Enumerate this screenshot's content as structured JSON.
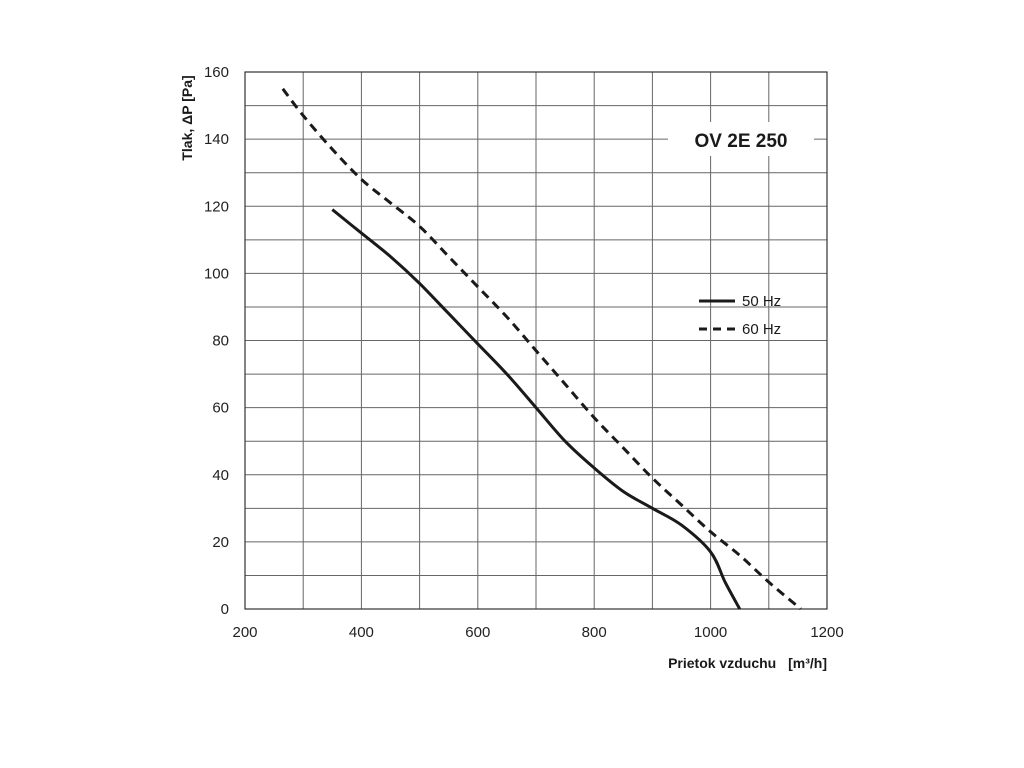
{
  "chart_data": {
    "type": "line",
    "title": "OV 2E 250",
    "xlabel": "Prietok vzduchu",
    "xlabel_unit": "[m³/h]",
    "ylabel": "Tlak, ΔP [Pa]",
    "xlim": [
      200,
      1200
    ],
    "ylim": [
      0,
      160
    ],
    "x_ticks": [
      200,
      400,
      600,
      800,
      1000,
      1200
    ],
    "y_ticks": [
      0,
      20,
      40,
      60,
      80,
      100,
      120,
      140,
      160
    ],
    "x_minor_step": 100,
    "y_minor_step": 10,
    "grid": true,
    "legend_position": "right",
    "series": [
      {
        "name": "50 Hz",
        "style": "solid",
        "color": "#1a1a1a",
        "x": [
          350,
          400,
          450,
          500,
          550,
          600,
          650,
          700,
          750,
          800,
          850,
          900,
          950,
          1000,
          1025,
          1050
        ],
        "y": [
          119,
          112,
          105,
          97,
          88,
          79,
          70,
          60,
          50,
          42,
          35,
          30,
          25,
          17,
          8,
          0
        ]
      },
      {
        "name": "60 Hz",
        "style": "dashed",
        "color": "#1a1a1a",
        "x": [
          265,
          300,
          350,
          400,
          450,
          500,
          550,
          600,
          650,
          700,
          750,
          800,
          850,
          900,
          950,
          1000,
          1050,
          1100,
          1155
        ],
        "y": [
          155,
          147,
          137,
          128,
          121,
          114,
          105,
          96,
          87,
          77,
          67,
          57,
          48,
          39,
          31,
          23,
          16,
          8,
          0
        ]
      }
    ]
  }
}
